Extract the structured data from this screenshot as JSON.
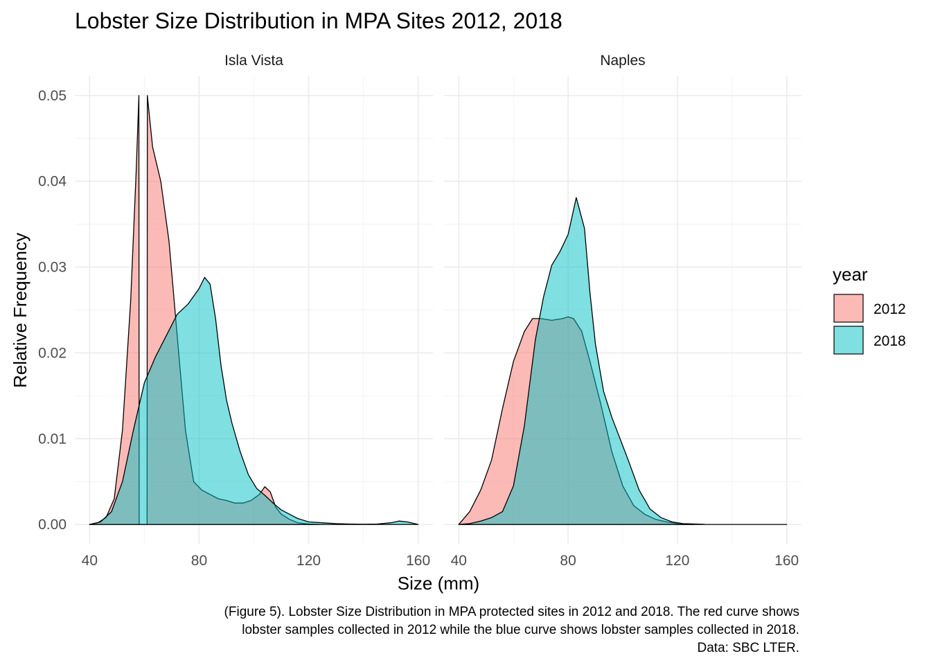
{
  "chart_data": {
    "type": "area",
    "title": "Lobster Size Distribution in MPA Sites 2012, 2018",
    "xlabel": "Size (mm)",
    "ylabel": "Relative Frequency",
    "xlim": [
      40,
      160
    ],
    "ylim": [
      0,
      0.05
    ],
    "x_ticks": [
      40,
      80,
      120,
      160
    ],
    "y_ticks": [
      0.0,
      0.01,
      0.02,
      0.03,
      0.04,
      0.05
    ],
    "x_tick_labels": [
      "40",
      "80",
      "120",
      "160"
    ],
    "y_tick_labels": [
      "0.00",
      "0.01",
      "0.02",
      "0.03",
      "0.04",
      "0.05"
    ],
    "grid": true,
    "legend": {
      "title": "year",
      "placement": "right",
      "entries": [
        {
          "label": "2012",
          "color": "#F8766D"
        },
        {
          "label": "2018",
          "color": "#00BFC4"
        }
      ]
    },
    "caption_lines": [
      "(Figure 5). Lobster Size Distribution in MPA protected sites in 2012 and 2018. The red curve shows",
      "lobster samples collected in 2012 while the blue curve shows lobster samples collected in 2018.",
      "Data: SBC LTER."
    ],
    "panels": [
      {
        "name": "Isla Vista",
        "series": [
          {
            "name": "2012",
            "color": "#F8766D",
            "points": [
              [
                40,
                0
              ],
              [
                43,
                0.0002
              ],
              [
                46,
                0.0008
              ],
              [
                49,
                0.003
              ],
              [
                52,
                0.011
              ],
              [
                55,
                0.026
              ],
              [
                57,
                0.041
              ],
              [
                58,
                0.05
              ],
              [
                58.1,
                0
              ],
              [
                61,
                0
              ],
              [
                61.1,
                0.05
              ],
              [
                63,
                0.044
              ],
              [
                66,
                0.04
              ],
              [
                69,
                0.033
              ],
              [
                72,
                0.022
              ],
              [
                75,
                0.011
              ],
              [
                78,
                0.005
              ],
              [
                81,
                0.004
              ],
              [
                84,
                0.0035
              ],
              [
                87,
                0.003
              ],
              [
                90,
                0.0028
              ],
              [
                93,
                0.0025
              ],
              [
                96,
                0.0025
              ],
              [
                99,
                0.0028
              ],
              [
                102,
                0.0035
              ],
              [
                104,
                0.0044
              ],
              [
                106,
                0.0038
              ],
              [
                108,
                0.002
              ],
              [
                110,
                0.0012
              ],
              [
                113,
                0.0006
              ],
              [
                116,
                0.0002
              ],
              [
                120,
                5e-05
              ],
              [
                124,
                0
              ]
            ]
          },
          {
            "name": "2018",
            "color": "#00BFC4",
            "points": [
              [
                40,
                0
              ],
              [
                44,
                0.0003
              ],
              [
                48,
                0.0015
              ],
              [
                52,
                0.005
              ],
              [
                56,
                0.011
              ],
              [
                60,
                0.0165
              ],
              [
                64,
                0.0195
              ],
              [
                68,
                0.022
              ],
              [
                72,
                0.0245
              ],
              [
                76,
                0.0257
              ],
              [
                80,
                0.0275
              ],
              [
                82,
                0.0288
              ],
              [
                84,
                0.028
              ],
              [
                86,
                0.024
              ],
              [
                88,
                0.0185
              ],
              [
                90,
                0.0145
              ],
              [
                92,
                0.0118
              ],
              [
                95,
                0.0085
              ],
              [
                98,
                0.0058
              ],
              [
                101,
                0.0042
              ],
              [
                104,
                0.0034
              ],
              [
                107,
                0.0025
              ],
              [
                110,
                0.0017
              ],
              [
                113,
                0.0012
              ],
              [
                116,
                0.0007
              ],
              [
                120,
                0.0003
              ],
              [
                125,
                0.0002
              ],
              [
                130,
                0.0001
              ],
              [
                135,
                5e-05
              ],
              [
                140,
                3e-05
              ],
              [
                145,
                5e-05
              ],
              [
                150,
                0.0002
              ],
              [
                153,
                0.0004
              ],
              [
                156,
                0.0003
              ],
              [
                160,
                0
              ]
            ]
          }
        ]
      },
      {
        "name": "Naples",
        "series": [
          {
            "name": "2012",
            "color": "#F8766D",
            "points": [
              [
                40,
                0
              ],
              [
                44,
                0.0015
              ],
              [
                48,
                0.004
              ],
              [
                52,
                0.0075
              ],
              [
                56,
                0.0135
              ],
              [
                60,
                0.019
              ],
              [
                64,
                0.0225
              ],
              [
                67,
                0.024
              ],
              [
                70,
                0.024
              ],
              [
                74,
                0.0238
              ],
              [
                78,
                0.024
              ],
              [
                80,
                0.0242
              ],
              [
                82,
                0.024
              ],
              [
                85,
                0.0225
              ],
              [
                88,
                0.019
              ],
              [
                92,
                0.014
              ],
              [
                96,
                0.0085
              ],
              [
                100,
                0.0045
              ],
              [
                104,
                0.0022
              ],
              [
                108,
                0.0012
              ],
              [
                112,
                0.0006
              ],
              [
                116,
                0.0003
              ],
              [
                120,
                0.0001
              ],
              [
                126,
                0
              ]
            ]
          },
          {
            "name": "2018",
            "color": "#00BFC4",
            "points": [
              [
                40,
                0
              ],
              [
                44,
                0.0001
              ],
              [
                48,
                0.0004
              ],
              [
                52,
                0.0008
              ],
              [
                56,
                0.0015
              ],
              [
                60,
                0.0045
              ],
              [
                64,
                0.0115
              ],
              [
                68,
                0.0215
              ],
              [
                71,
                0.0265
              ],
              [
                74,
                0.0302
              ],
              [
                77,
                0.0318
              ],
              [
                80,
                0.0338
              ],
              [
                83,
                0.0381
              ],
              [
                86,
                0.0345
              ],
              [
                88,
                0.027
              ],
              [
                90,
                0.021
              ],
              [
                93,
                0.0155
              ],
              [
                96,
                0.0125
              ],
              [
                99,
                0.01
              ],
              [
                102,
                0.0075
              ],
              [
                106,
                0.004
              ],
              [
                110,
                0.0018
              ],
              [
                114,
                0.0008
              ],
              [
                118,
                0.0003
              ],
              [
                122,
                0.0001
              ],
              [
                130,
                2e-05
              ],
              [
                140,
                0
              ],
              [
                160,
                0
              ]
            ]
          }
        ]
      }
    ]
  }
}
